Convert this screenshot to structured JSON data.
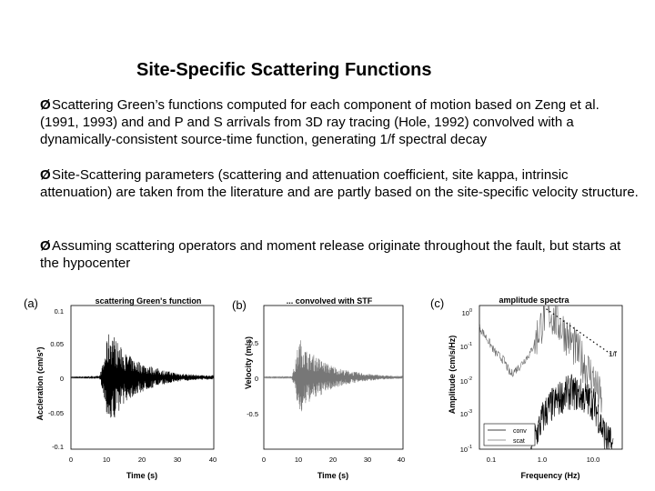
{
  "slide": {
    "title": "Site-Specific Scattering Functions",
    "bullet_marker": "Ø",
    "bullets": [
      "Scattering Green’s functions computed for each component of motion based on Zeng et al. (1991, 1993) and and P and S arrivals from 3D ray tracing (Hole, 1992) convolved with a dynamically-consistent source-time function, generating 1/f spectral decay",
      "Site-Scattering parameters (scattering and attenuation coefficient, site kappa, intrinsic attenuation) are taken from the literature and are partly based on the site-specific velocity structure.",
      "Assuming scattering operators and moment release originate throughout the fault, but starts at the hypocenter"
    ]
  },
  "panels": {
    "a": {
      "letter": "(a)",
      "title": "scattering Green's function",
      "ylabel": "Accleration (cm/s²)",
      "xlabel": "Time (s)",
      "yticks": [
        "0.1",
        "0.05",
        "0",
        "-0.05",
        "-0.1"
      ],
      "xticks": [
        "0",
        "10",
        "20",
        "30",
        "40"
      ]
    },
    "b": {
      "letter": "(b)",
      "title": "... convolved with STF",
      "ylabel": "Velocity (m/s)",
      "xlabel": "Time (s)",
      "yticks": [
        "0.5",
        "0",
        "-0.5"
      ],
      "xticks": [
        "0",
        "10",
        "20",
        "30",
        "40"
      ]
    },
    "c": {
      "letter": "(c)",
      "title": "amplitude spectra",
      "ylabel": "Amplitude (cm/s/Hz)",
      "xlabel": "Frequency (Hz)",
      "yticks_base": [
        "10",
        "10",
        "10",
        "10"
      ],
      "yticks_exp": [
        "0",
        "-1",
        "-2",
        "-3"
      ],
      "yticks_bottom_base": "10",
      "yticks_bottom_exp": "-1",
      "xticks": [
        "0.1",
        "1.0",
        "10.0"
      ],
      "annotation": "1/f",
      "legend": [
        "conv",
        "scat"
      ]
    }
  },
  "chart_data": [
    {
      "type": "line",
      "title": "scattering Green's function",
      "xlabel": "Time (s)",
      "ylabel": "Accleration (cm/s²)",
      "xlim": [
        0,
        40
      ],
      "ylim": [
        -0.1,
        0.1
      ],
      "series": [
        {
          "envelope": {
            "x": [
              0,
              8,
              9,
              10,
              11,
              12,
              13,
              15,
              18,
              22,
              26,
              30,
              34,
              38,
              40
            ],
            "y": [
              0.001,
              0.002,
              0.02,
              0.05,
              0.07,
              0.06,
              0.05,
              0.035,
              0.025,
              0.016,
              0.01,
              0.006,
              0.004,
              0.003,
              0.003
            ]
          }
        }
      ]
    },
    {
      "type": "line",
      "title": "... convolved with STF",
      "xlabel": "Time (s)",
      "ylabel": "Velocity (m/s)",
      "xlim": [
        0,
        40
      ],
      "ylim": [
        -1,
        1
      ],
      "series": [
        {
          "envelope": {
            "x": [
              0,
              8,
              9,
              10,
              11,
              12,
              13,
              15,
              18,
              22,
              26,
              30,
              34,
              38,
              40
            ],
            "y": [
              0.005,
              0.01,
              0.2,
              0.5,
              0.55,
              0.4,
              0.35,
              0.3,
              0.2,
              0.12,
              0.08,
              0.05,
              0.03,
              0.02,
              0.02
            ]
          }
        }
      ]
    },
    {
      "type": "line",
      "title": "amplitude spectra",
      "xlabel": "Frequency (Hz)",
      "ylabel": "Amplitude (cm/s/Hz)",
      "xscale": "log",
      "yscale": "log",
      "xlim": [
        0.05,
        30
      ],
      "ylim": [
        0.0001,
        1
      ],
      "legend_position": "bottom-left",
      "series": [
        {
          "name": "conv",
          "x": [
            0.05,
            0.07,
            0.1,
            0.15,
            0.2,
            0.3,
            0.5,
            0.8,
            1.0,
            1.5,
            2,
            3,
            5,
            8,
            10,
            12
          ],
          "y": [
            0.25,
            0.12,
            0.05,
            0.03,
            0.012,
            0.02,
            0.05,
            0.3,
            0.8,
            0.4,
            0.25,
            0.1,
            0.03,
            0.01,
            0.004,
            0.002
          ]
        },
        {
          "name": "scat",
          "x": [
            0.5,
            0.8,
            1.0,
            1.5,
            2,
            3,
            5,
            8,
            10,
            12,
            15,
            20
          ],
          "y": [
            0.0001,
            0.0006,
            0.0012,
            0.002,
            0.003,
            0.004,
            0.003,
            0.002,
            0.001,
            0.0004,
            0.0002,
            0.0001
          ]
        },
        {
          "name": "1/f",
          "x": [
            1.0,
            2,
            5,
            10,
            20
          ],
          "y": [
            0.8,
            0.4,
            0.16,
            0.08,
            0.04
          ]
        }
      ]
    }
  ]
}
